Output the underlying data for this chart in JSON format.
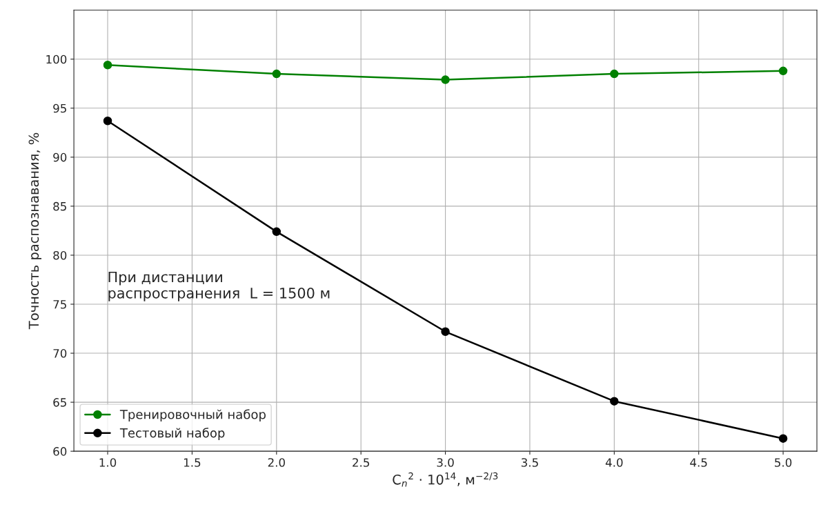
{
  "chart_data": {
    "type": "line",
    "xlabel": "C$_{n}$$^{2}$ · 10$^{14}$, м$^{−2/3}$",
    "ylabel": "Точность распознавания, %",
    "x": [
      1.0,
      2.0,
      3.0,
      4.0,
      5.0
    ],
    "series": [
      {
        "name": "Тренировочный набор",
        "color": "#008000",
        "values": [
          99.4,
          98.5,
          97.9,
          98.5,
          98.8
        ]
      },
      {
        "name": "Тестовый набор",
        "color": "#000000",
        "values": [
          93.7,
          82.4,
          72.2,
          65.1,
          61.3
        ]
      }
    ],
    "xlim": [
      0.8,
      5.2
    ],
    "xticks": [
      {
        "value": 1.0,
        "label": "1.0"
      },
      {
        "value": 1.5,
        "label": "1.5"
      },
      {
        "value": 2.0,
        "label": "2.0"
      },
      {
        "value": 2.5,
        "label": "2.5"
      },
      {
        "value": 3.0,
        "label": "3.0"
      },
      {
        "value": 3.5,
        "label": "3.5"
      },
      {
        "value": 4.0,
        "label": "4.0"
      },
      {
        "value": 4.5,
        "label": "4.5"
      },
      {
        "value": 5.0,
        "label": "5.0"
      }
    ],
    "ylim": [
      60,
      105
    ],
    "yticks": [
      60,
      65,
      70,
      75,
      80,
      85,
      90,
      95,
      100
    ],
    "annotations": [
      "При дистанции\nраспространения  L = 1500 м"
    ],
    "grid": true,
    "legend": "bottom left",
    "marker": "circle",
    "line_style": "solid"
  }
}
